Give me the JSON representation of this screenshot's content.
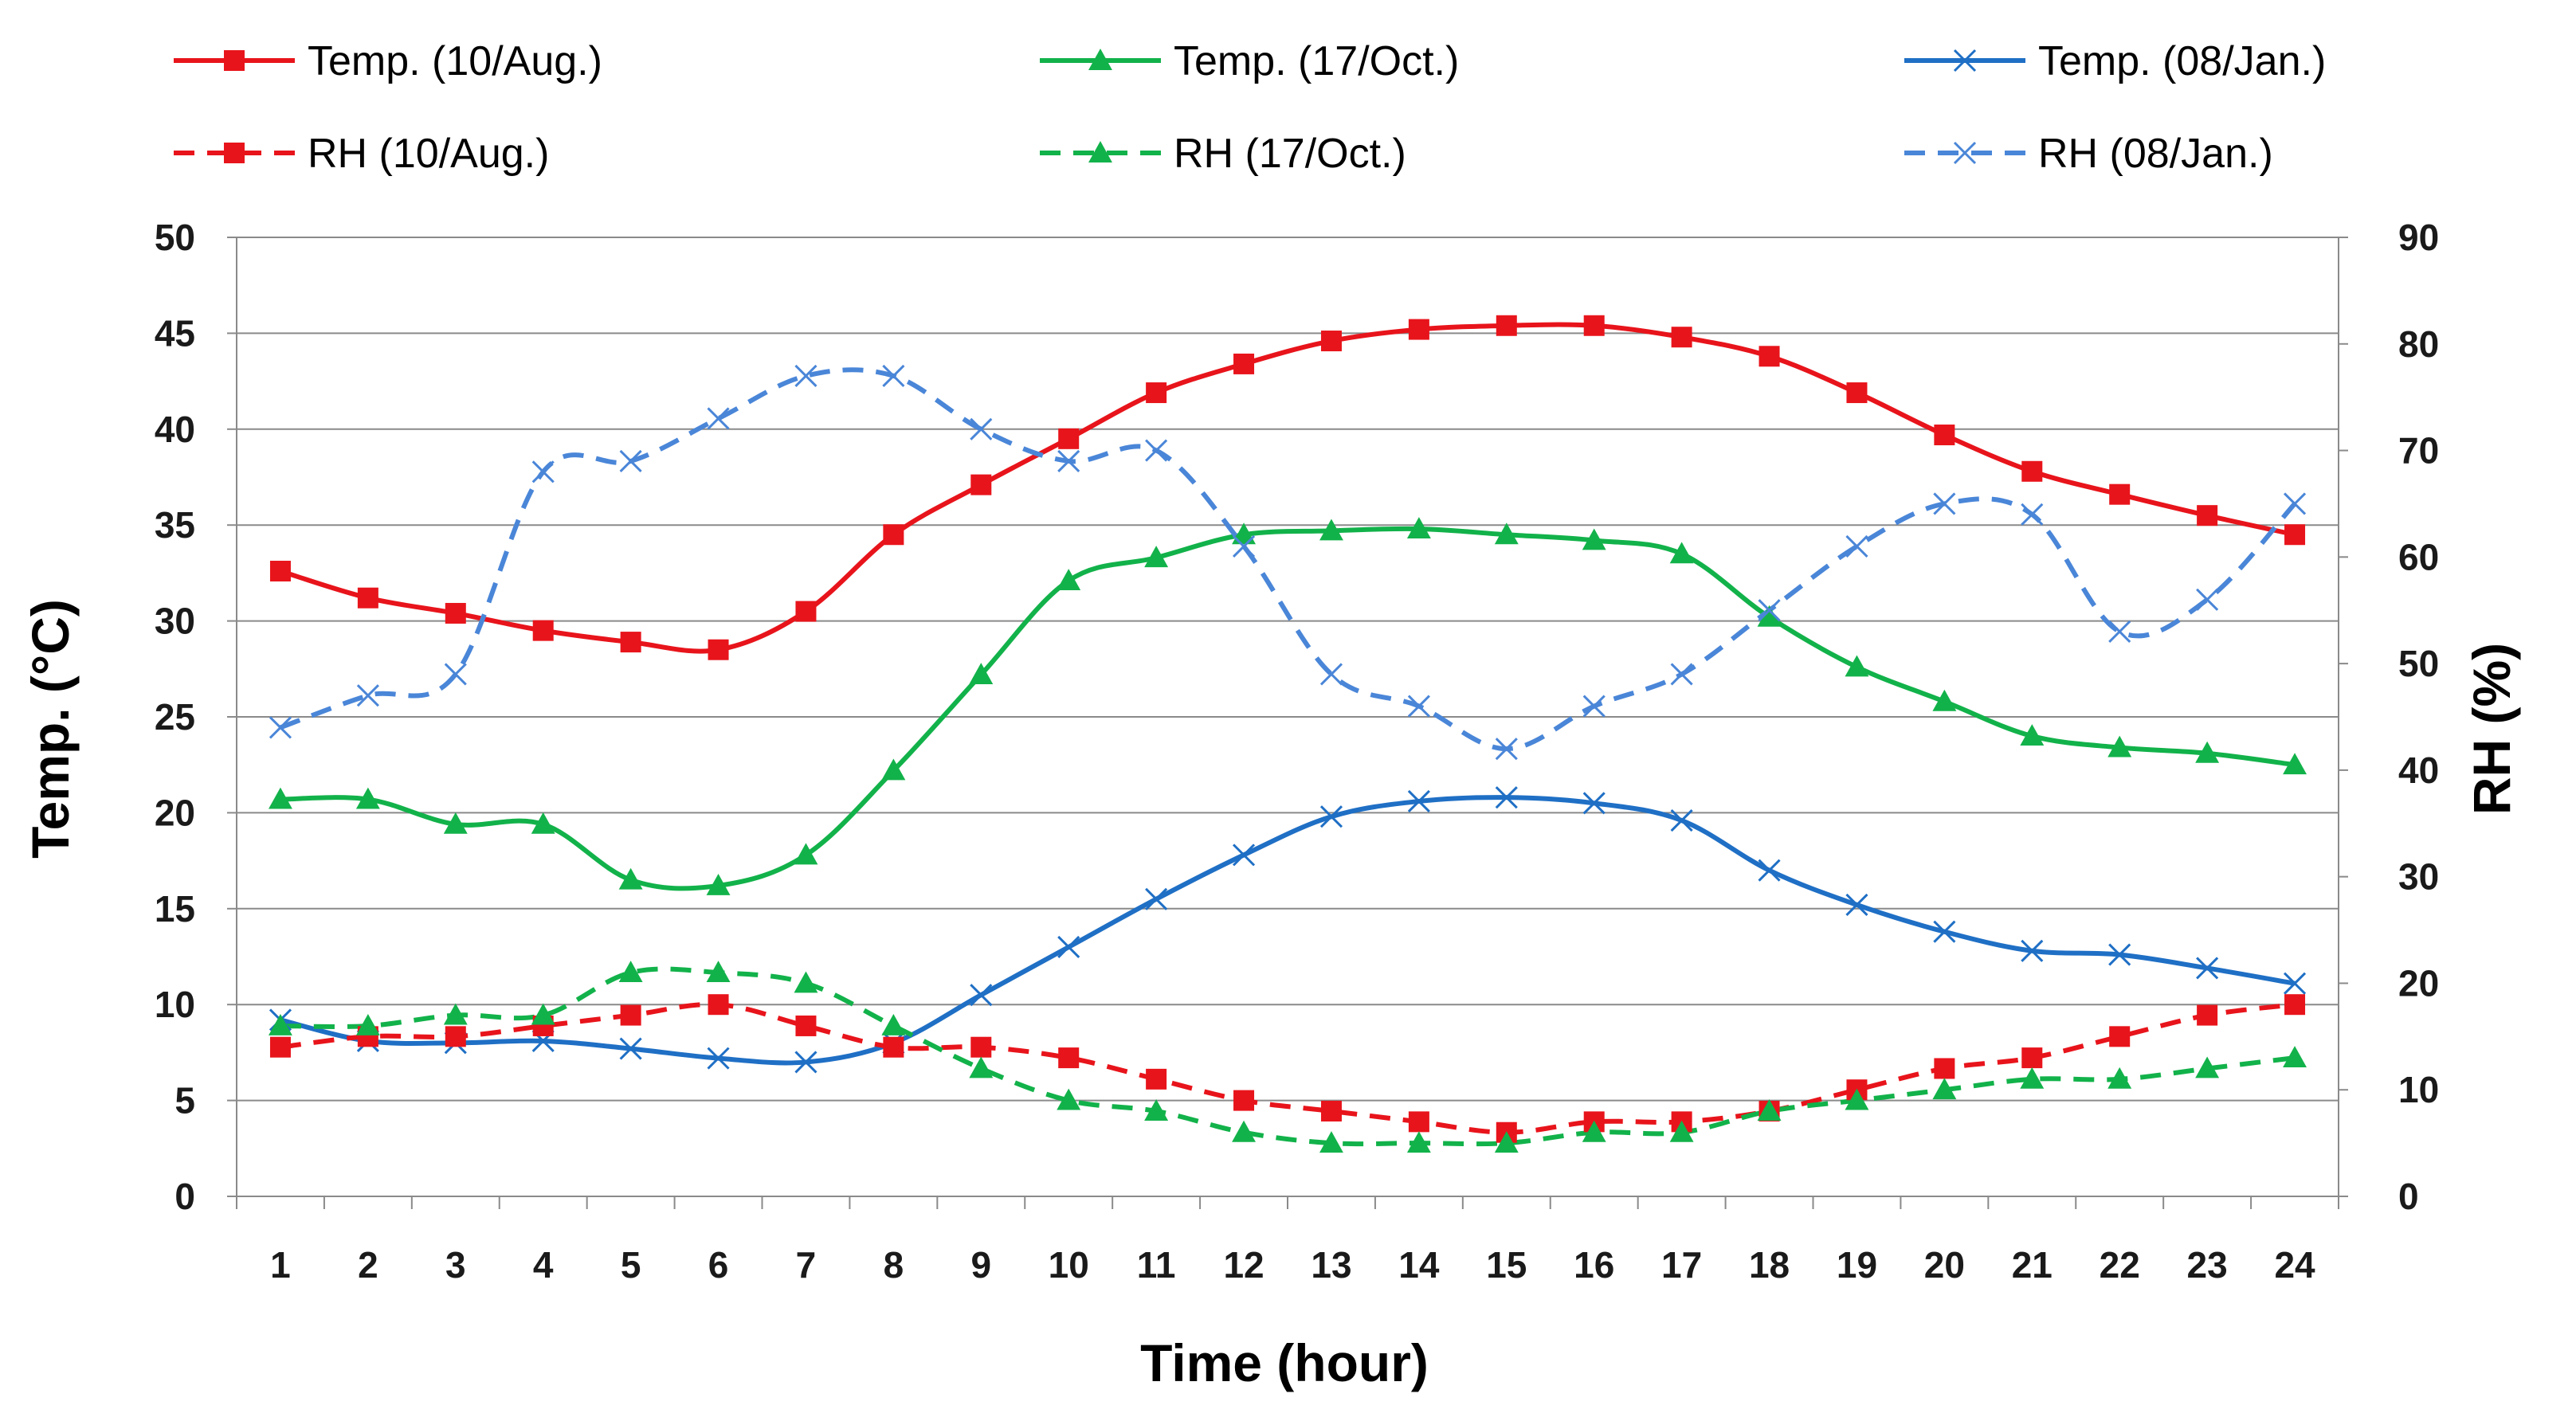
{
  "chart_data": {
    "type": "line",
    "title": "",
    "xlabel": "Time (hour)",
    "ylabel": "Temp. (°C)",
    "y2label": "RH (%)",
    "categories": [
      "1",
      "2",
      "3",
      "4",
      "5",
      "6",
      "7",
      "8",
      "9",
      "10",
      "11",
      "12",
      "13",
      "14",
      "15",
      "16",
      "17",
      "18",
      "19",
      "20",
      "21",
      "22",
      "23",
      "24"
    ],
    "ylim": [
      0,
      50
    ],
    "y2lim": [
      0,
      90
    ],
    "yticks": [
      "0",
      "5",
      "10",
      "15",
      "20",
      "25",
      "30",
      "35",
      "40",
      "45",
      "50"
    ],
    "y2ticks": [
      "0",
      "10",
      "20",
      "30",
      "40",
      "50",
      "60",
      "70",
      "80",
      "90"
    ],
    "grid": true,
    "legend_position": "top",
    "series": [
      {
        "name": "Temp. (10/Aug.)",
        "axis": "left",
        "color": "#e8141b",
        "dash": "solid",
        "marker": "square",
        "values": [
          32.6,
          31.2,
          30.4,
          29.5,
          28.9,
          28.5,
          30.5,
          34.5,
          37.1,
          39.5,
          41.9,
          43.4,
          44.6,
          45.2,
          45.4,
          45.4,
          44.8,
          43.8,
          41.9,
          39.7,
          37.8,
          36.6,
          35.5,
          34.5
        ]
      },
      {
        "name": "Temp. (17/Oct.)",
        "axis": "left",
        "color": "#12b24a",
        "dash": "solid",
        "marker": "triangle",
        "values": [
          20.7,
          20.7,
          19.4,
          19.4,
          16.5,
          16.2,
          17.8,
          22.2,
          27.2,
          32.1,
          33.3,
          34.5,
          34.7,
          34.8,
          34.5,
          34.2,
          33.5,
          30.2,
          27.6,
          25.8,
          24.0,
          23.4,
          23.1,
          22.5
        ]
      },
      {
        "name": "Temp. (08/Jan.)",
        "axis": "left",
        "color": "#1f6fc5",
        "dash": "solid",
        "marker": "x",
        "values": [
          9.2,
          8.1,
          8.0,
          8.1,
          7.7,
          7.2,
          7.0,
          8.0,
          10.5,
          13.0,
          15.5,
          17.8,
          19.8,
          20.6,
          20.8,
          20.5,
          19.6,
          17.0,
          15.2,
          13.8,
          12.8,
          12.6,
          11.9,
          11.1
        ]
      },
      {
        "name": "RH (10/Aug.)",
        "axis": "right",
        "color": "#e8141b",
        "dash": "dashed",
        "marker": "square",
        "values": [
          14,
          15,
          15,
          16,
          17,
          18,
          16,
          14,
          14,
          13,
          11,
          9,
          8,
          7,
          6,
          7,
          7,
          8,
          10,
          12,
          13,
          15,
          17,
          18
        ]
      },
      {
        "name": "RH (17/Oct.)",
        "axis": "right",
        "color": "#12b24a",
        "dash": "dashed",
        "marker": "triangle",
        "values": [
          16,
          16,
          17,
          17,
          21,
          21,
          20,
          16,
          12,
          9,
          8,
          6,
          5,
          5,
          5,
          6,
          6,
          8,
          9,
          10,
          11,
          11,
          12,
          13
        ]
      },
      {
        "name": "RH (08/Jan.)",
        "axis": "right",
        "color": "#4a86d8",
        "dash": "dashed",
        "marker": "x",
        "values": [
          44,
          47,
          49,
          68,
          69,
          73,
          77,
          77,
          72,
          69,
          70,
          61,
          49,
          46,
          42,
          46,
          49,
          55,
          61,
          65,
          64,
          53,
          56,
          65
        ]
      }
    ]
  }
}
